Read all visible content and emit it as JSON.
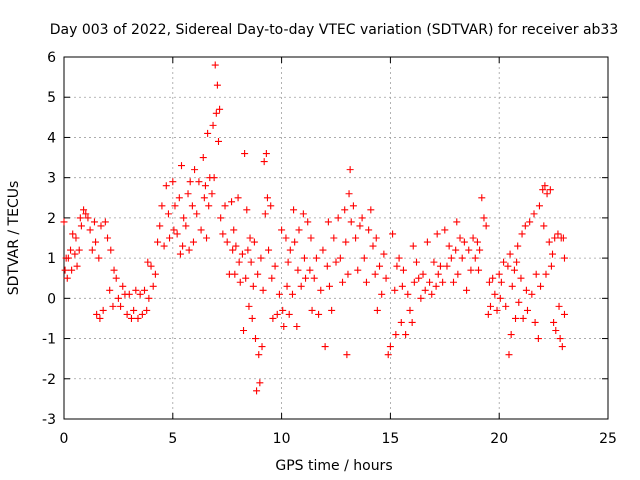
{
  "chart_data": {
    "type": "scatter",
    "title": "Day 003 of 2022, Sidereal Day-to-day VTEC variation (SDTVAR) for receiver ab33",
    "xlabel": "GPS time / hours",
    "ylabel": "SDTVAR / TECUs",
    "xlim": [
      0,
      25
    ],
    "ylim": [
      -3,
      6
    ],
    "x_ticks": [
      0,
      5,
      10,
      15,
      20,
      25
    ],
    "y_ticks": [
      -3,
      -2,
      -1,
      0,
      1,
      2,
      3,
      4,
      5,
      6
    ],
    "x_tick_labels": [
      "0",
      "5",
      "10",
      "15",
      "20",
      "25"
    ],
    "y_tick_labels": [
      "-3",
      "-2",
      "-1",
      "0",
      "1",
      "2",
      "3",
      "4",
      "5",
      "6"
    ],
    "grid": true,
    "marker": "+",
    "marker_color": "#ff0000",
    "series": [
      {
        "name": "SDTVAR",
        "points": [
          [
            0.0,
            1.9
          ],
          [
            0.05,
            0.7
          ],
          [
            0.1,
            1.0
          ],
          [
            0.15,
            0.5
          ],
          [
            0.2,
            1.0
          ],
          [
            0.3,
            1.2
          ],
          [
            0.35,
            0.7
          ],
          [
            0.4,
            1.6
          ],
          [
            0.5,
            1.1
          ],
          [
            0.55,
            1.5
          ],
          [
            0.6,
            0.8
          ],
          [
            0.7,
            1.2
          ],
          [
            0.75,
            2.0
          ],
          [
            0.8,
            1.8
          ],
          [
            0.9,
            2.2
          ],
          [
            1.0,
            2.1
          ],
          [
            1.1,
            2.0
          ],
          [
            1.2,
            1.7
          ],
          [
            1.3,
            1.2
          ],
          [
            1.4,
            1.9
          ],
          [
            1.45,
            1.4
          ],
          [
            1.5,
            -0.4
          ],
          [
            1.6,
            1.0
          ],
          [
            1.65,
            -0.5
          ],
          [
            1.7,
            1.8
          ],
          [
            1.8,
            -0.3
          ],
          [
            1.9,
            1.9
          ],
          [
            2.0,
            1.5
          ],
          [
            2.1,
            0.2
          ],
          [
            2.15,
            1.2
          ],
          [
            2.25,
            -0.2
          ],
          [
            2.3,
            0.7
          ],
          [
            2.4,
            0.5
          ],
          [
            2.5,
            0.0
          ],
          [
            2.6,
            -0.2
          ],
          [
            2.7,
            0.3
          ],
          [
            2.8,
            0.1
          ],
          [
            2.9,
            -0.4
          ],
          [
            3.0,
            0.1
          ],
          [
            3.1,
            -0.5
          ],
          [
            3.2,
            -0.3
          ],
          [
            3.3,
            0.2
          ],
          [
            3.4,
            -0.5
          ],
          [
            3.5,
            0.1
          ],
          [
            3.6,
            -0.4
          ],
          [
            3.7,
            0.2
          ],
          [
            3.8,
            -0.3
          ],
          [
            3.85,
            0.9
          ],
          [
            3.9,
            0.0
          ],
          [
            4.0,
            0.8
          ],
          [
            4.1,
            0.3
          ],
          [
            4.2,
            0.6
          ],
          [
            4.3,
            1.4
          ],
          [
            4.4,
            1.8
          ],
          [
            4.5,
            2.3
          ],
          [
            4.6,
            1.3
          ],
          [
            4.7,
            2.8
          ],
          [
            4.8,
            2.1
          ],
          [
            4.85,
            1.5
          ],
          [
            5.0,
            2.9
          ],
          [
            5.05,
            1.7
          ],
          [
            5.1,
            2.3
          ],
          [
            5.2,
            1.6
          ],
          [
            5.3,
            2.5
          ],
          [
            5.35,
            1.1
          ],
          [
            5.4,
            3.3
          ],
          [
            5.45,
            1.3
          ],
          [
            5.5,
            2.0
          ],
          [
            5.6,
            1.8
          ],
          [
            5.7,
            2.6
          ],
          [
            5.75,
            1.2
          ],
          [
            5.8,
            2.9
          ],
          [
            5.9,
            2.3
          ],
          [
            5.95,
            1.4
          ],
          [
            6.0,
            3.2
          ],
          [
            6.1,
            2.1
          ],
          [
            6.2,
            2.9
          ],
          [
            6.3,
            1.7
          ],
          [
            6.4,
            3.5
          ],
          [
            6.45,
            2.5
          ],
          [
            6.5,
            2.8
          ],
          [
            6.55,
            1.5
          ],
          [
            6.6,
            4.1
          ],
          [
            6.65,
            2.3
          ],
          [
            6.7,
            3.0
          ],
          [
            6.8,
            2.6
          ],
          [
            6.85,
            4.3
          ],
          [
            6.9,
            3.0
          ],
          [
            6.95,
            5.8
          ],
          [
            7.0,
            4.6
          ],
          [
            7.05,
            5.3
          ],
          [
            7.1,
            3.9
          ],
          [
            7.15,
            4.7
          ],
          [
            7.2,
            2.0
          ],
          [
            7.3,
            1.6
          ],
          [
            7.4,
            2.3
          ],
          [
            7.5,
            1.4
          ],
          [
            7.6,
            0.6
          ],
          [
            7.7,
            2.4
          ],
          [
            7.75,
            1.2
          ],
          [
            7.8,
            1.7
          ],
          [
            7.85,
            0.6
          ],
          [
            7.9,
            1.3
          ],
          [
            8.0,
            2.5
          ],
          [
            8.05,
            0.9
          ],
          [
            8.1,
            0.4
          ],
          [
            8.2,
            1.1
          ],
          [
            8.25,
            -0.8
          ],
          [
            8.3,
            3.6
          ],
          [
            8.35,
            0.5
          ],
          [
            8.4,
            2.2
          ],
          [
            8.45,
            1.2
          ],
          [
            8.5,
            -0.2
          ],
          [
            8.55,
            1.5
          ],
          [
            8.6,
            0.9
          ],
          [
            8.65,
            -0.5
          ],
          [
            8.7,
            0.3
          ],
          [
            8.75,
            1.4
          ],
          [
            8.8,
            -1.0
          ],
          [
            8.85,
            -2.3
          ],
          [
            8.9,
            0.6
          ],
          [
            8.95,
            -1.4
          ],
          [
            9.0,
            -2.1
          ],
          [
            9.05,
            1.0
          ],
          [
            9.1,
            -1.2
          ],
          [
            9.15,
            0.2
          ],
          [
            9.2,
            3.4
          ],
          [
            9.25,
            2.1
          ],
          [
            9.3,
            3.6
          ],
          [
            9.35,
            2.5
          ],
          [
            9.4,
            1.2
          ],
          [
            9.5,
            2.3
          ],
          [
            9.55,
            0.5
          ],
          [
            9.6,
            -0.5
          ],
          [
            9.7,
            0.8
          ],
          [
            9.8,
            -0.4
          ],
          [
            9.9,
            0.1
          ],
          [
            10.0,
            1.7
          ],
          [
            10.05,
            -0.3
          ],
          [
            10.1,
            -0.7
          ],
          [
            10.2,
            1.5
          ],
          [
            10.25,
            0.3
          ],
          [
            10.3,
            0.9
          ],
          [
            10.35,
            -0.4
          ],
          [
            10.4,
            1.2
          ],
          [
            10.5,
            0.1
          ],
          [
            10.55,
            2.2
          ],
          [
            10.6,
            1.4
          ],
          [
            10.7,
            -0.7
          ],
          [
            10.75,
            0.7
          ],
          [
            10.8,
            1.7
          ],
          [
            10.9,
            0.3
          ],
          [
            11.0,
            2.1
          ],
          [
            11.05,
            1.0
          ],
          [
            11.1,
            0.5
          ],
          [
            11.2,
            1.9
          ],
          [
            11.3,
            0.7
          ],
          [
            11.35,
            1.5
          ],
          [
            11.4,
            -0.3
          ],
          [
            11.5,
            0.5
          ],
          [
            11.6,
            1.0
          ],
          [
            11.7,
            -0.4
          ],
          [
            11.8,
            0.2
          ],
          [
            11.9,
            1.2
          ],
          [
            12.0,
            -1.2
          ],
          [
            12.1,
            0.8
          ],
          [
            12.15,
            1.9
          ],
          [
            12.2,
            0.3
          ],
          [
            12.3,
            -0.3
          ],
          [
            12.4,
            1.5
          ],
          [
            12.5,
            0.9
          ],
          [
            12.6,
            2.0
          ],
          [
            12.7,
            1.0
          ],
          [
            12.8,
            0.4
          ],
          [
            12.9,
            2.2
          ],
          [
            12.95,
            1.4
          ],
          [
            13.0,
            -1.4
          ],
          [
            13.05,
            0.6
          ],
          [
            13.1,
            2.6
          ],
          [
            13.15,
            3.2
          ],
          [
            13.2,
            1.9
          ],
          [
            13.3,
            2.3
          ],
          [
            13.4,
            1.5
          ],
          [
            13.5,
            0.7
          ],
          [
            13.6,
            1.8
          ],
          [
            13.7,
            2.0
          ],
          [
            13.8,
            1.0
          ],
          [
            13.9,
            0.4
          ],
          [
            14.0,
            1.7
          ],
          [
            14.1,
            2.2
          ],
          [
            14.2,
            1.3
          ],
          [
            14.3,
            0.6
          ],
          [
            14.35,
            1.5
          ],
          [
            14.4,
            -0.3
          ],
          [
            14.5,
            0.8
          ],
          [
            14.6,
            0.1
          ],
          [
            14.7,
            1.1
          ],
          [
            14.8,
            0.5
          ],
          [
            14.9,
            -1.4
          ],
          [
            15.0,
            -1.2
          ],
          [
            15.1,
            1.6
          ],
          [
            15.2,
            0.2
          ],
          [
            15.25,
            -0.9
          ],
          [
            15.3,
            0.8
          ],
          [
            15.4,
            1.0
          ],
          [
            15.5,
            -0.6
          ],
          [
            15.55,
            0.3
          ],
          [
            15.6,
            0.7
          ],
          [
            15.7,
            -0.9
          ],
          [
            15.8,
            0.1
          ],
          [
            15.9,
            -0.3
          ],
          [
            16.0,
            -0.6
          ],
          [
            16.05,
            1.3
          ],
          [
            16.1,
            0.4
          ],
          [
            16.2,
            0.9
          ],
          [
            16.3,
            0.5
          ],
          [
            16.4,
            0.0
          ],
          [
            16.5,
            0.6
          ],
          [
            16.6,
            0.2
          ],
          [
            16.7,
            1.4
          ],
          [
            16.8,
            0.4
          ],
          [
            16.9,
            0.1
          ],
          [
            17.0,
            0.9
          ],
          [
            17.1,
            0.3
          ],
          [
            17.15,
            1.6
          ],
          [
            17.2,
            0.6
          ],
          [
            17.3,
            0.8
          ],
          [
            17.4,
            0.4
          ],
          [
            17.5,
            1.7
          ],
          [
            17.6,
            0.8
          ],
          [
            17.7,
            1.3
          ],
          [
            17.8,
            1.0
          ],
          [
            17.9,
            0.4
          ],
          [
            18.0,
            1.2
          ],
          [
            18.05,
            1.9
          ],
          [
            18.1,
            0.6
          ],
          [
            18.2,
            1.5
          ],
          [
            18.3,
            1.0
          ],
          [
            18.4,
            1.4
          ],
          [
            18.5,
            0.2
          ],
          [
            18.6,
            1.2
          ],
          [
            18.7,
            0.7
          ],
          [
            18.8,
            1.5
          ],
          [
            18.9,
            1.0
          ],
          [
            19.0,
            1.4
          ],
          [
            19.05,
            0.7
          ],
          [
            19.1,
            1.2
          ],
          [
            19.2,
            2.5
          ],
          [
            19.3,
            2.0
          ],
          [
            19.4,
            1.8
          ],
          [
            19.5,
            -0.4
          ],
          [
            19.55,
            0.4
          ],
          [
            19.6,
            -0.2
          ],
          [
            19.7,
            0.5
          ],
          [
            19.8,
            0.1
          ],
          [
            19.9,
            -0.3
          ],
          [
            20.0,
            0.6
          ],
          [
            20.05,
            0.0
          ],
          [
            20.1,
            0.4
          ],
          [
            20.2,
            0.9
          ],
          [
            20.3,
            -0.2
          ],
          [
            20.4,
            0.8
          ],
          [
            20.45,
            -1.4
          ],
          [
            20.5,
            1.1
          ],
          [
            20.55,
            -0.9
          ],
          [
            20.6,
            0.3
          ],
          [
            20.7,
            0.7
          ],
          [
            20.75,
            -0.5
          ],
          [
            20.8,
            0.9
          ],
          [
            20.85,
            1.3
          ],
          [
            20.9,
            -0.1
          ],
          [
            21.0,
            0.5
          ],
          [
            21.05,
            1.6
          ],
          [
            21.1,
            -0.5
          ],
          [
            21.2,
            1.8
          ],
          [
            21.25,
            0.2
          ],
          [
            21.3,
            -0.3
          ],
          [
            21.4,
            1.9
          ],
          [
            21.5,
            0.1
          ],
          [
            21.6,
            2.1
          ],
          [
            21.65,
            -0.6
          ],
          [
            21.7,
            0.6
          ],
          [
            21.8,
            -1.0
          ],
          [
            21.85,
            2.3
          ],
          [
            21.9,
            0.3
          ],
          [
            22.0,
            2.7
          ],
          [
            22.05,
            1.8
          ],
          [
            22.1,
            2.8
          ],
          [
            22.15,
            0.6
          ],
          [
            22.2,
            2.6
          ],
          [
            22.3,
            1.4
          ],
          [
            22.35,
            2.7
          ],
          [
            22.4,
            0.8
          ],
          [
            22.45,
            1.1
          ],
          [
            22.5,
            -0.6
          ],
          [
            22.55,
            1.5
          ],
          [
            22.6,
            -0.8
          ],
          [
            22.7,
            1.6
          ],
          [
            22.75,
            -0.2
          ],
          [
            22.8,
            -1.0
          ],
          [
            22.85,
            1.5
          ],
          [
            22.9,
            -1.2
          ],
          [
            22.95,
            1.5
          ],
          [
            23.0,
            -0.4
          ],
          [
            23.0,
            1.0
          ]
        ]
      }
    ]
  }
}
